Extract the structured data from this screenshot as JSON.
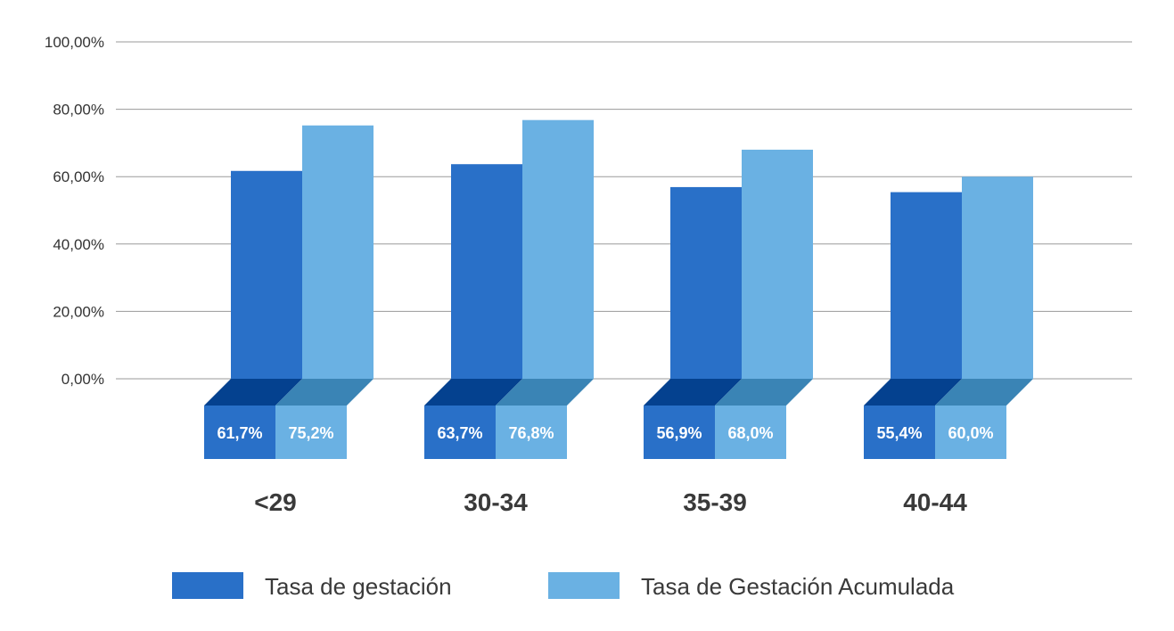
{
  "chart_data": {
    "type": "bar",
    "categories": [
      "<29",
      "30-34",
      "35-39",
      "40-44"
    ],
    "series": [
      {
        "name": "Tasa de gestación",
        "values": [
          61.7,
          63.7,
          56.9,
          55.4
        ],
        "labels": [
          "61,7%",
          "63,7%",
          "56,9%",
          "55,4%"
        ],
        "color": "#2970c8",
        "shade_color": "#04418f"
      },
      {
        "name": "Tasa de Gestación Acumulada",
        "values": [
          75.2,
          76.8,
          68.0,
          60.0
        ],
        "labels": [
          "75,2%",
          "76,8%",
          "68,0%",
          "60,0%"
        ],
        "color": "#6ab1e3",
        "shade_color": "#3a84b5"
      }
    ],
    "yticks": [
      "0,00%",
      "20,00%",
      "40,00%",
      "60,00%",
      "80,00%",
      "100,00%"
    ],
    "ylim": [
      0,
      100
    ],
    "grid": true,
    "legend_position": "bottom"
  }
}
